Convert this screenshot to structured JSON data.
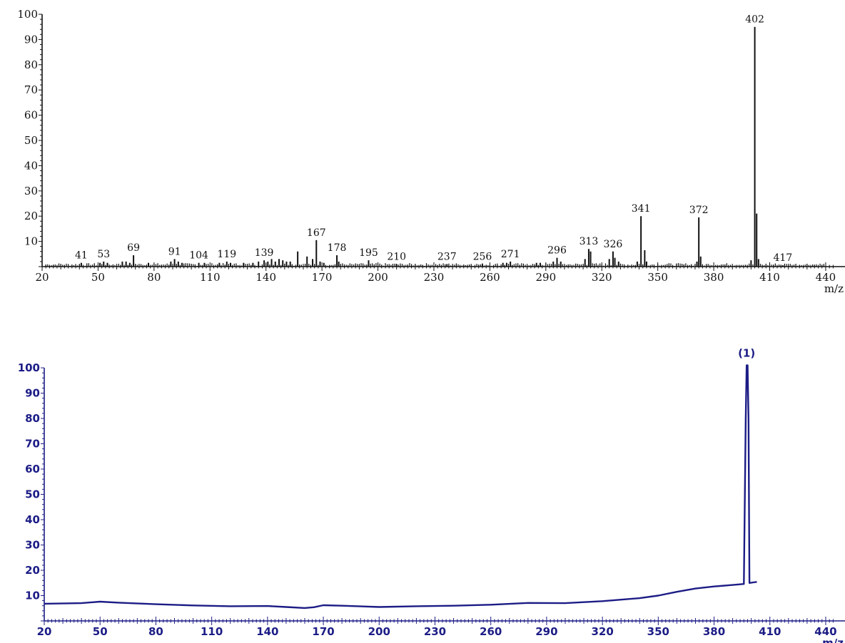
{
  "chart_data": [
    {
      "type": "bar",
      "xlabel": "m/z",
      "ylabel": "",
      "xlim": [
        20,
        445
      ],
      "ylim": [
        0,
        100
      ],
      "x_ticks": [
        20,
        50,
        80,
        110,
        140,
        170,
        200,
        230,
        260,
        290,
        320,
        350,
        380,
        410,
        440
      ],
      "y_ticks": [
        10,
        20,
        30,
        40,
        50,
        60,
        70,
        80,
        90,
        100
      ],
      "color": "#111111",
      "peaks": [
        {
          "mz": 41,
          "intensity": 1.5,
          "label": "41"
        },
        {
          "mz": 51,
          "intensity": 1.5
        },
        {
          "mz": 53,
          "intensity": 2,
          "label": "53"
        },
        {
          "mz": 55,
          "intensity": 1.5
        },
        {
          "mz": 63,
          "intensity": 2
        },
        {
          "mz": 65,
          "intensity": 2
        },
        {
          "mz": 67,
          "intensity": 1.5
        },
        {
          "mz": 69,
          "intensity": 4.5,
          "label": "69"
        },
        {
          "mz": 77,
          "intensity": 1.5
        },
        {
          "mz": 89,
          "intensity": 2
        },
        {
          "mz": 91,
          "intensity": 3,
          "label": "91"
        },
        {
          "mz": 93,
          "intensity": 2
        },
        {
          "mz": 95,
          "intensity": 1.5
        },
        {
          "mz": 104,
          "intensity": 1.5,
          "label": "104"
        },
        {
          "mz": 107,
          "intensity": 1.5
        },
        {
          "mz": 115,
          "intensity": 1.5
        },
        {
          "mz": 119,
          "intensity": 2,
          "label": "119"
        },
        {
          "mz": 121,
          "intensity": 1.5
        },
        {
          "mz": 128,
          "intensity": 1.5
        },
        {
          "mz": 133,
          "intensity": 1.5
        },
        {
          "mz": 136,
          "intensity": 2
        },
        {
          "mz": 139,
          "intensity": 2.5,
          "label": "139"
        },
        {
          "mz": 141,
          "intensity": 2
        },
        {
          "mz": 143,
          "intensity": 3
        },
        {
          "mz": 145,
          "intensity": 2
        },
        {
          "mz": 147,
          "intensity": 3
        },
        {
          "mz": 149,
          "intensity": 2.5
        },
        {
          "mz": 151,
          "intensity": 2
        },
        {
          "mz": 153,
          "intensity": 2
        },
        {
          "mz": 157,
          "intensity": 6
        },
        {
          "mz": 162,
          "intensity": 4
        },
        {
          "mz": 165,
          "intensity": 3
        },
        {
          "mz": 167,
          "intensity": 10.5,
          "label": "167"
        },
        {
          "mz": 169,
          "intensity": 2
        },
        {
          "mz": 171,
          "intensity": 1.5
        },
        {
          "mz": 178,
          "intensity": 4.5,
          "label": "178"
        },
        {
          "mz": 179,
          "intensity": 2
        },
        {
          "mz": 195,
          "intensity": 2.5,
          "label": "195"
        },
        {
          "mz": 210,
          "intensity": 1,
          "label": "210"
        },
        {
          "mz": 237,
          "intensity": 1,
          "label": "237"
        },
        {
          "mz": 256,
          "intensity": 1,
          "label": "256"
        },
        {
          "mz": 267,
          "intensity": 1.5
        },
        {
          "mz": 269,
          "intensity": 1.5
        },
        {
          "mz": 271,
          "intensity": 2,
          "label": "271"
        },
        {
          "mz": 285,
          "intensity": 1.5
        },
        {
          "mz": 287,
          "intensity": 1.5
        },
        {
          "mz": 294,
          "intensity": 2
        },
        {
          "mz": 296,
          "intensity": 3.5,
          "label": "296"
        },
        {
          "mz": 298,
          "intensity": 2
        },
        {
          "mz": 311,
          "intensity": 3
        },
        {
          "mz": 313,
          "intensity": 7,
          "label": "313"
        },
        {
          "mz": 314,
          "intensity": 6
        },
        {
          "mz": 324,
          "intensity": 3
        },
        {
          "mz": 326,
          "intensity": 6,
          "label": "326"
        },
        {
          "mz": 327,
          "intensity": 3.5
        },
        {
          "mz": 329,
          "intensity": 2
        },
        {
          "mz": 339,
          "intensity": 2
        },
        {
          "mz": 341,
          "intensity": 20,
          "label": "341"
        },
        {
          "mz": 343,
          "intensity": 6.5
        },
        {
          "mz": 344,
          "intensity": 2
        },
        {
          "mz": 371,
          "intensity": 2
        },
        {
          "mz": 372,
          "intensity": 19.5,
          "label": "372"
        },
        {
          "mz": 373,
          "intensity": 4
        },
        {
          "mz": 400,
          "intensity": 2.5
        },
        {
          "mz": 402,
          "intensity": 95,
          "label": "402"
        },
        {
          "mz": 403,
          "intensity": 21
        },
        {
          "mz": 404,
          "intensity": 3
        },
        {
          "mz": 417,
          "intensity": 0.5,
          "label": "417"
        }
      ]
    },
    {
      "type": "line",
      "xlabel": "m/z",
      "ylabel": "",
      "xlim": [
        20,
        445
      ],
      "ylim": [
        0,
        100
      ],
      "x_ticks": [
        20,
        50,
        80,
        110,
        140,
        170,
        200,
        230,
        260,
        290,
        320,
        350,
        380,
        410,
        440
      ],
      "y_ticks": [
        10,
        20,
        30,
        40,
        50,
        60,
        70,
        80,
        90,
        100
      ],
      "color": "#1c1c86",
      "annotation": "(1)",
      "x": [
        20,
        40,
        50,
        60,
        80,
        100,
        120,
        140,
        150,
        160,
        165,
        170,
        180,
        200,
        220,
        240,
        260,
        280,
        300,
        320,
        330,
        340,
        350,
        360,
        370,
        380,
        390,
        396,
        397,
        397.5,
        398,
        398.5,
        399,
        401,
        403
      ],
      "y": [
        6.8,
        7.0,
        7.6,
        7.2,
        6.6,
        6.1,
        5.8,
        5.9,
        5.5,
        5.1,
        5.4,
        6.2,
        6.0,
        5.5,
        5.8,
        6.0,
        6.4,
        7.1,
        7.0,
        7.8,
        8.4,
        9.0,
        10.0,
        11.5,
        12.8,
        13.6,
        14.2,
        14.6,
        80,
        101,
        101,
        80,
        15.0,
        15.2,
        15.4
      ]
    }
  ]
}
